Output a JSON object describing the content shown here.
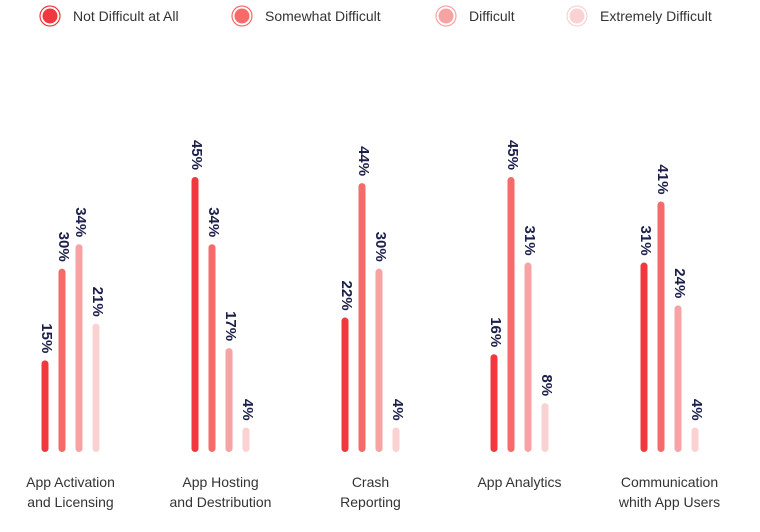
{
  "chart_data": {
    "type": "bar",
    "categories": [
      [
        "App Activation",
        "and Licensing"
      ],
      [
        "App Hosting",
        "and Destribution"
      ],
      [
        "Crash",
        "Reporting"
      ],
      [
        "App Analytics"
      ],
      [
        "Communication",
        "whith App Users"
      ]
    ],
    "series": [
      {
        "name": "Not Difficult at All",
        "color": "#f0383e",
        "values": [
          15,
          45,
          22,
          16,
          31
        ]
      },
      {
        "name": "Somewhat Difficult",
        "color": "#f66a6a",
        "values": [
          30,
          34,
          44,
          45,
          41
        ]
      },
      {
        "name": "Difficult",
        "color": "#f7a3a3",
        "values": [
          34,
          17,
          30,
          31,
          24
        ]
      },
      {
        "name": "Extremely Difficult",
        "color": "#fad2d2",
        "values": [
          21,
          4,
          4,
          8,
          4
        ]
      }
    ],
    "value_suffix": "%",
    "ylim": [
      0,
      45
    ],
    "legend_position": "top",
    "grid": false,
    "label_color": "#1c1f4a"
  }
}
